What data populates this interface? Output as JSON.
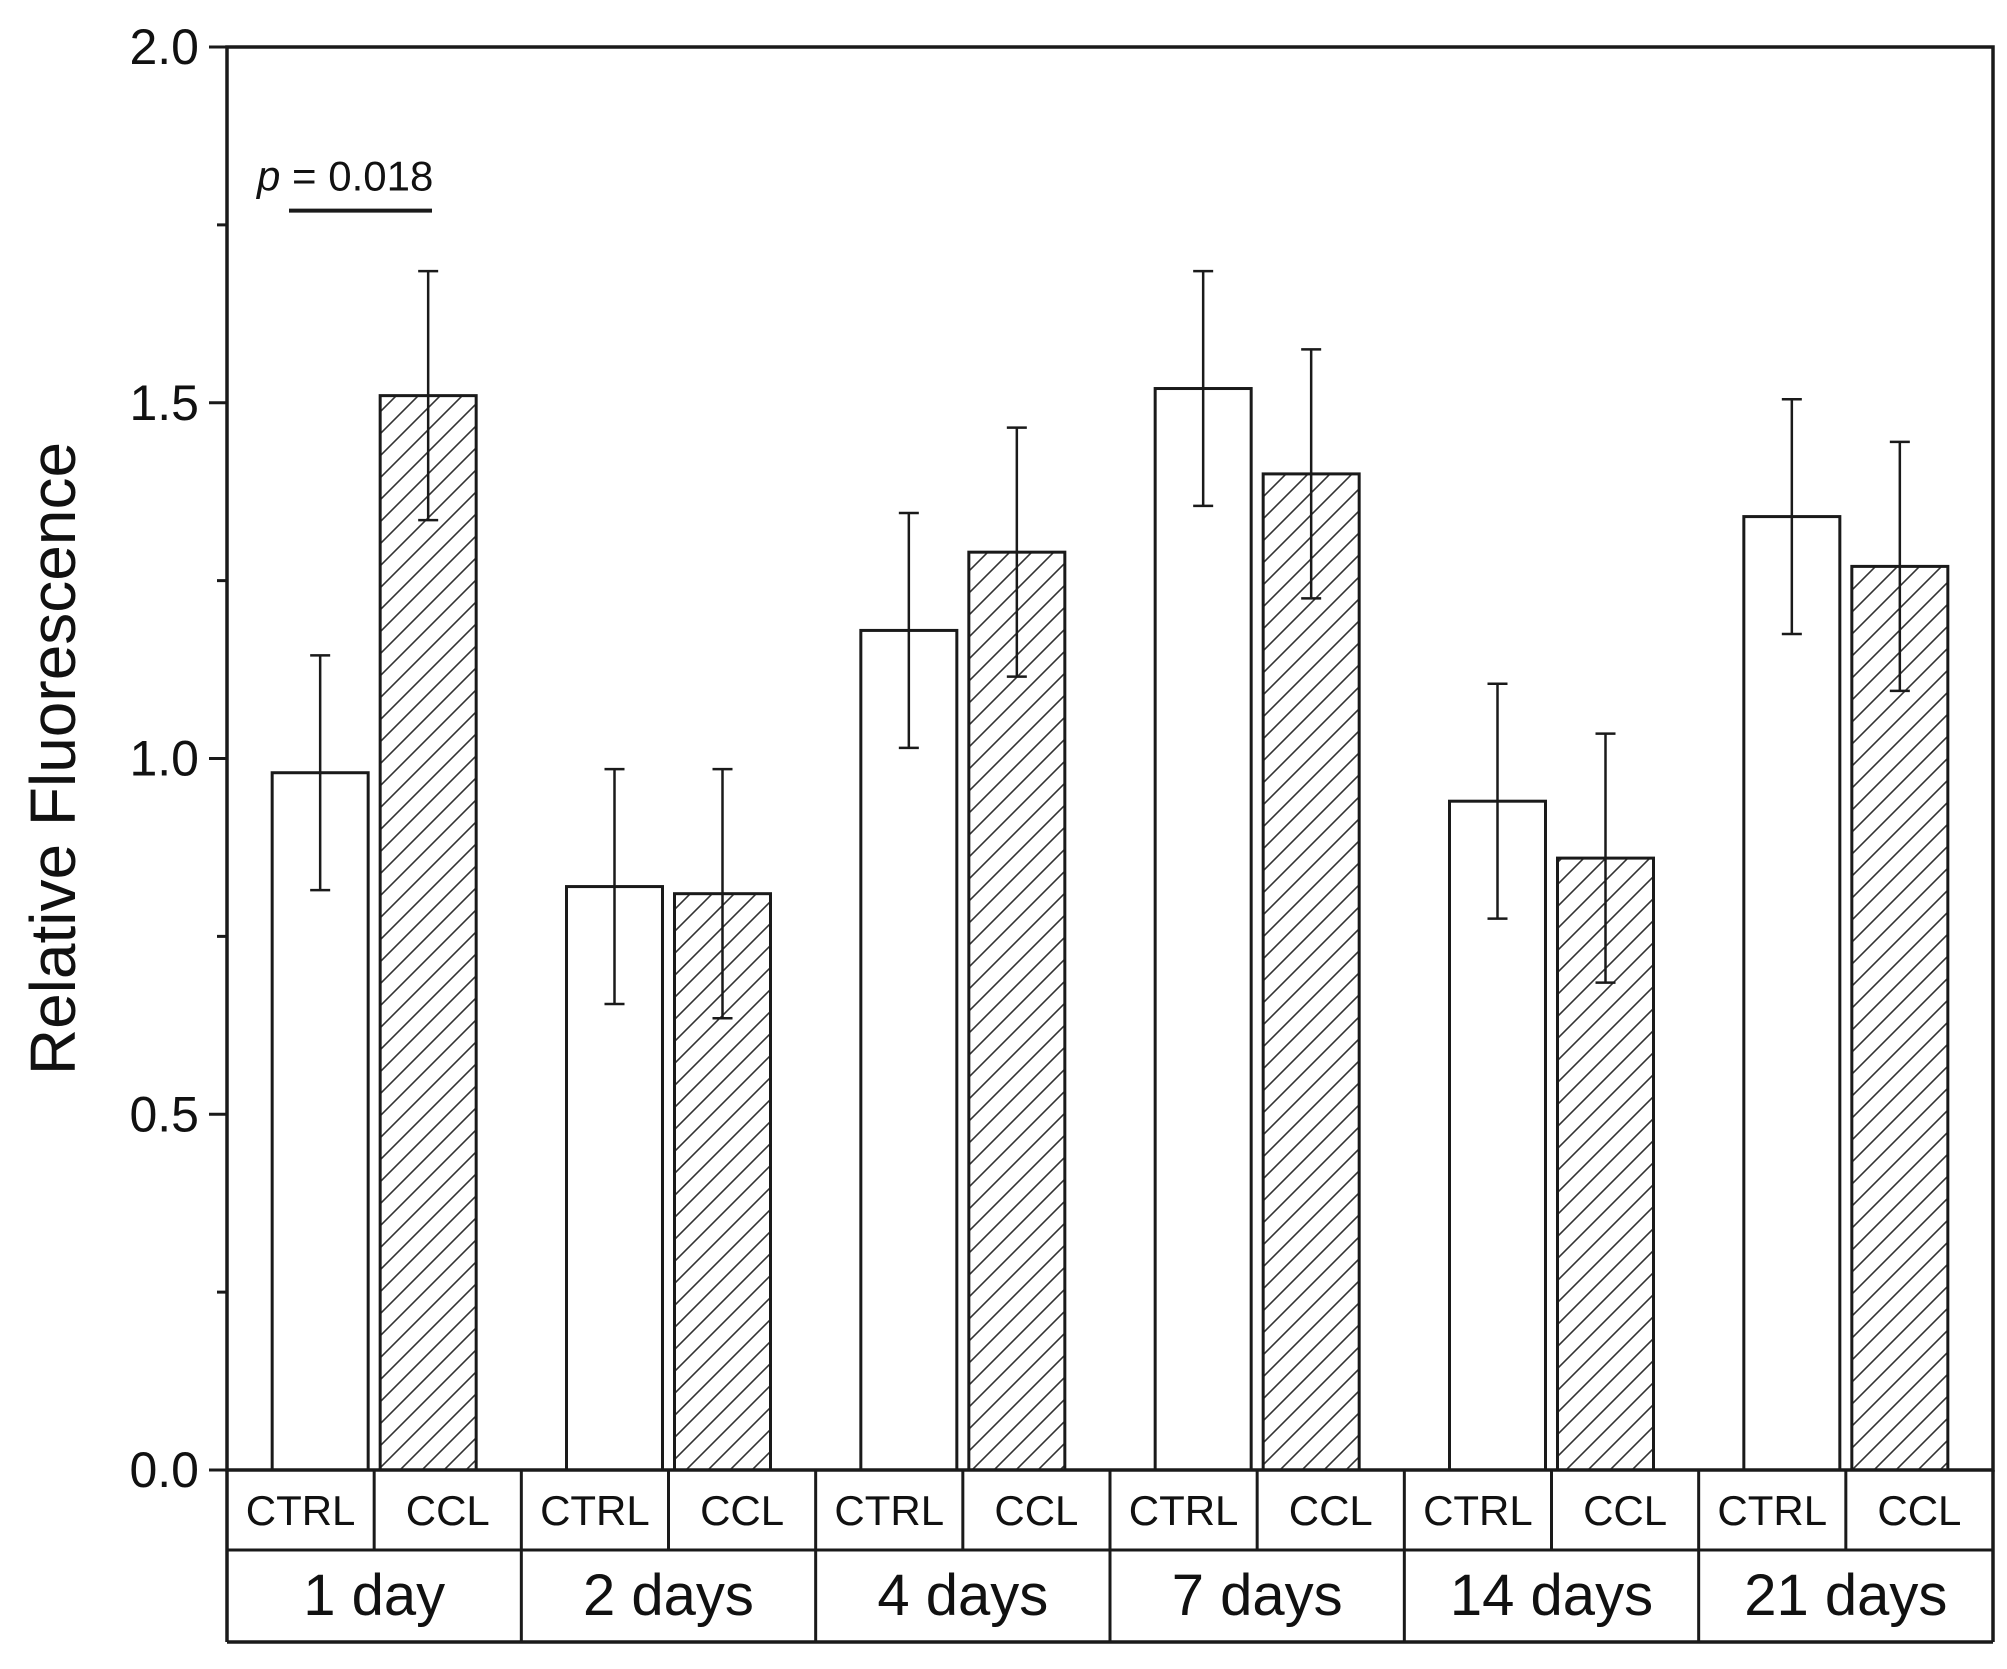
{
  "chart_data": {
    "type": "bar",
    "title": "",
    "xlabel": "",
    "ylabel": "Relative Fluorescence",
    "ylim": [
      0,
      2.0
    ],
    "yticks": [
      "0.0",
      "0.5",
      "1.0",
      "1.5",
      "2.0"
    ],
    "groups": [
      "1 day",
      "2 days",
      "4 days",
      "7 days",
      "14 days",
      "21 days"
    ],
    "conditions": [
      "CTRL",
      "CCL"
    ],
    "series": [
      {
        "name": "CTRL",
        "pattern": "none",
        "values": [
          0.98,
          0.82,
          1.18,
          1.52,
          0.94,
          1.34
        ],
        "errors": [
          0.165,
          0.165,
          0.165,
          0.165,
          0.165,
          0.165
        ]
      },
      {
        "name": "CCL",
        "pattern": "hatched",
        "values": [
          1.51,
          0.81,
          1.29,
          1.4,
          0.86,
          1.27
        ],
        "errors": [
          0.175,
          0.175,
          0.175,
          0.175,
          0.175,
          0.175
        ]
      }
    ],
    "annotations": [
      {
        "group_index": 0,
        "prefix": "p",
        "text": " = 0.018",
        "y": 1.77
      }
    ],
    "colors": {
      "line": "#1a1a1a",
      "bar_fill": "#ffffff",
      "hatch": "#333333"
    }
  }
}
